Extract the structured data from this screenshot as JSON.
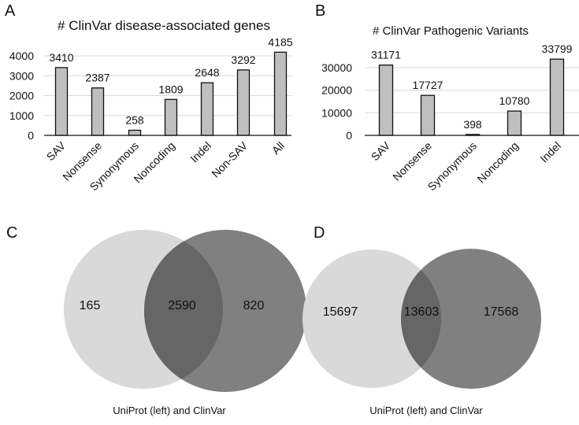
{
  "panels": {
    "a": "A",
    "b": "B",
    "c": "C",
    "d": "D"
  },
  "chart_data": [
    {
      "type": "bar",
      "title": "# ClinVar disease-associated genes",
      "categories": [
        "SAV",
        "Nonsense",
        "Synonymous",
        "Noncoding",
        "Indel",
        "Non-SAV",
        "All"
      ],
      "values": [
        3410,
        2387,
        258,
        1809,
        2648,
        3292,
        4185
      ],
      "yticks": [
        "0",
        "1000",
        "2000",
        "3000",
        "4000"
      ],
      "ylim": [
        0,
        4000
      ],
      "grid": true,
      "bar_color": "#bfbfbf"
    },
    {
      "type": "bar",
      "title": "# ClinVar Pathogenic Variants",
      "categories": [
        "SAV",
        "Nonsense",
        "Synonymous",
        "Noncoding",
        "Indel"
      ],
      "values": [
        31171,
        17727,
        398,
        10780,
        33799
      ],
      "yticks": [
        "0",
        "10000",
        "20000",
        "30000"
      ],
      "ylim": [
        0,
        30000
      ],
      "grid": true,
      "bar_color": "#bfbfbf"
    },
    {
      "type": "venn",
      "left_only": "165",
      "overlap": "2590",
      "right_only": "820",
      "caption": "UniProt (left) and ClinVar",
      "colors": {
        "left": "#d9d9d9",
        "right": "#7f7f7f"
      }
    },
    {
      "type": "venn",
      "left_only": "15697",
      "overlap": "13603",
      "right_only": "17568",
      "caption": "UniProt (left) and ClinVar",
      "colors": {
        "left": "#d9d9d9",
        "right": "#7f7f7f"
      }
    }
  ]
}
